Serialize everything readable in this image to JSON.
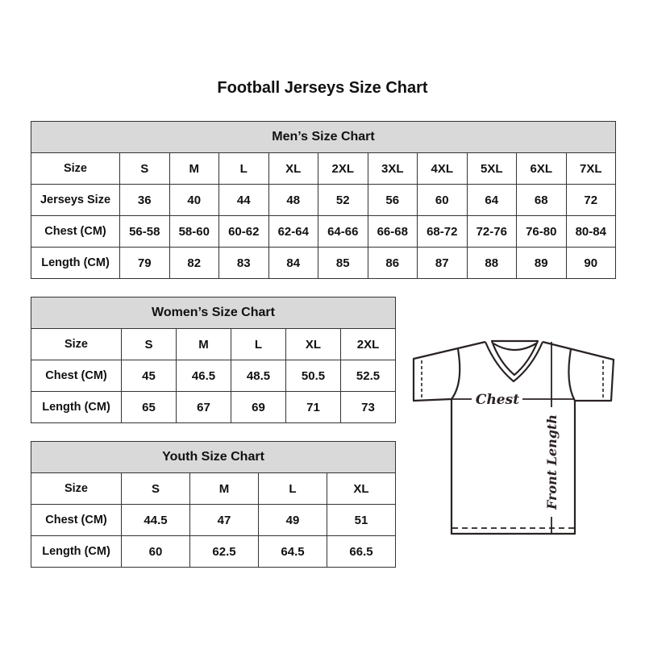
{
  "title": "Football Jerseys Size Chart",
  "mens": {
    "caption": "Men’s Size Chart",
    "rows": [
      [
        "Size",
        "S",
        "M",
        "L",
        "XL",
        "2XL",
        "3XL",
        "4XL",
        "5XL",
        "6XL",
        "7XL"
      ],
      [
        "Jerseys Size",
        "36",
        "40",
        "44",
        "48",
        "52",
        "56",
        "60",
        "64",
        "68",
        "72"
      ],
      [
        "Chest (CM)",
        "56-58",
        "58-60",
        "60-62",
        "62-64",
        "64-66",
        "66-68",
        "68-72",
        "72-76",
        "76-80",
        "80-84"
      ],
      [
        "Length (CM)",
        "79",
        "82",
        "83",
        "84",
        "85",
        "86",
        "87",
        "88",
        "89",
        "90"
      ]
    ]
  },
  "womens": {
    "caption": "Women’s Size Chart",
    "rows": [
      [
        "Size",
        "S",
        "M",
        "L",
        "XL",
        "2XL"
      ],
      [
        "Chest (CM)",
        "45",
        "46.5",
        "48.5",
        "50.5",
        "52.5"
      ],
      [
        "Length (CM)",
        "65",
        "67",
        "69",
        "71",
        "73"
      ]
    ]
  },
  "youth": {
    "caption": "Youth Size Chart",
    "rows": [
      [
        "Size",
        "S",
        "M",
        "L",
        "XL"
      ],
      [
        "Chest (CM)",
        "44.5",
        "47",
        "49",
        "51"
      ],
      [
        "Length (CM)",
        "60",
        "62.5",
        "64.5",
        "66.5"
      ]
    ]
  },
  "diagram": {
    "chest_label": "Chest",
    "length_label": "Front Length"
  },
  "colors": {
    "header_bg": "#d9d9d9",
    "border": "#333333"
  }
}
